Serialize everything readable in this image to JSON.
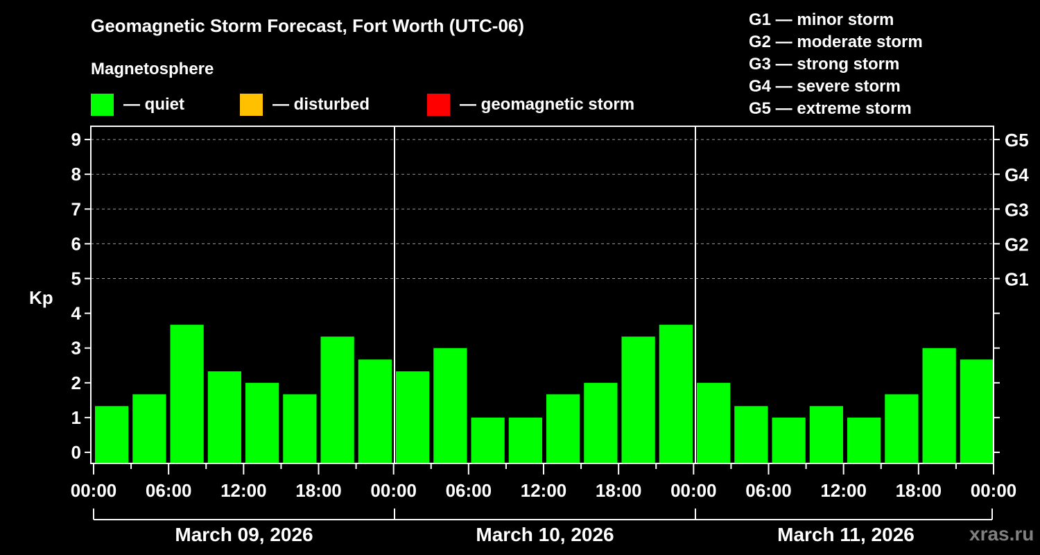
{
  "header": {
    "title": "Geomagnetic Storm Forecast, Fort Worth (UTC-06)",
    "legend_title": "Magnetosphere",
    "legend": [
      {
        "label": "— quiet",
        "color": "#00ff00"
      },
      {
        "label": "— disturbed",
        "color": "#ffc000"
      },
      {
        "label": "— geomagnetic storm",
        "color": "#ff0000"
      }
    ]
  },
  "g_scale_legend": [
    "G1 — minor storm",
    "G2 — moderate storm",
    "G3 — strong storm",
    "G4 — severe storm",
    "G5 — extreme storm"
  ],
  "watermark": "xras.ru",
  "chart_data": {
    "type": "bar",
    "title": "Geomagnetic Storm Forecast, Fort Worth (UTC-06)",
    "ylabel": "Kp",
    "xlabel": "",
    "ylim": [
      0,
      9
    ],
    "y_ticks": [
      0,
      1,
      2,
      3,
      4,
      5,
      6,
      7,
      8,
      9
    ],
    "right_axis_ticks": [
      {
        "kp": 5,
        "label": "G1"
      },
      {
        "kp": 6,
        "label": "G2"
      },
      {
        "kp": 7,
        "label": "G3"
      },
      {
        "kp": 8,
        "label": "G4"
      },
      {
        "kp": 9,
        "label": "G5"
      }
    ],
    "grid": "dashed horizontal at Kp 5-9",
    "x_tick_labels": [
      "00:00",
      "06:00",
      "12:00",
      "18:00",
      "00:00",
      "06:00",
      "12:00",
      "18:00",
      "00:00",
      "06:00",
      "12:00",
      "18:00",
      "00:00"
    ],
    "days": [
      "March 09, 2026",
      "March 10, 2026",
      "March 11, 2026"
    ],
    "bar_color": "#00ff00",
    "interval_hours": 3,
    "series": [
      {
        "name": "March 09, 2026",
        "values": [
          1.33,
          1.67,
          3.67,
          2.33,
          2.0,
          1.67,
          3.33,
          2.67
        ]
      },
      {
        "name": "March 10, 2026",
        "values": [
          2.33,
          3.0,
          1.0,
          1.0,
          1.67,
          2.0,
          3.33,
          3.67
        ]
      },
      {
        "name": "March 11, 2026",
        "values": [
          2.0,
          1.33,
          1.0,
          1.33,
          1.0,
          1.67,
          3.0,
          2.67
        ]
      }
    ]
  }
}
